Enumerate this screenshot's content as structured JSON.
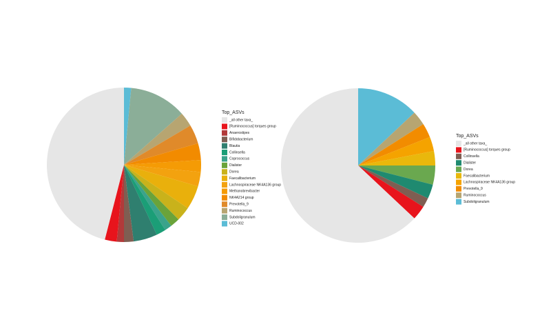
{
  "chart_data": [
    {
      "type": "pie",
      "legend_title": "Top_ASVs",
      "categories": [
        "_all other taxa_",
        "[Ruminococcus] torques group",
        "Anaerostipes",
        "Bifidobacterium",
        "Blautia",
        "Collinsella",
        "Coprococcus",
        "Dialister",
        "Dorea",
        "Faecalibacterium",
        "Lachnospiraceae NK4A136 group",
        "Methanobrevibacter",
        "NK4A214 group",
        "Prevotella_9",
        "Ruminococcus",
        "Subdoligranulum",
        "UCD-002"
      ],
      "values": [
        46,
        2.5,
        1.5,
        2,
        5,
        2,
        1.5,
        2,
        3,
        5,
        3,
        2.5,
        3.5,
        4,
        3,
        12,
        1.5
      ],
      "colors": [
        "#e6e6e6",
        "#e8141c",
        "#b23a3a",
        "#7f5e52",
        "#2f7f6f",
        "#1b9e77",
        "#3aa38b",
        "#6aa33a",
        "#c9b21b",
        "#e9b00c",
        "#f3a20f",
        "#f59b05",
        "#f28b00",
        "#e08a2a",
        "#b7a571",
        "#8bae98",
        "#5bbcd6"
      ]
    },
    {
      "type": "pie",
      "legend_title": "Top_ASVs",
      "categories": [
        "_all other taxa_",
        "[Ruminococcus] torques group",
        "Collinsella",
        "Dialister",
        "Dorea",
        "Faecalibacterium",
        "Lachnospiraceae NK4A136 group",
        "Prevotella_9",
        "Ruminococcus",
        "Subdoligranulum"
      ],
      "values": [
        63,
        3,
        2,
        3,
        4,
        3,
        3,
        3,
        3,
        13
      ],
      "colors": [
        "#e6e6e6",
        "#e8141c",
        "#7f5e52",
        "#1f8a70",
        "#6aa84f",
        "#e9b80c",
        "#f5a300",
        "#f28c00",
        "#b7a571",
        "#5bbcd6"
      ]
    }
  ]
}
